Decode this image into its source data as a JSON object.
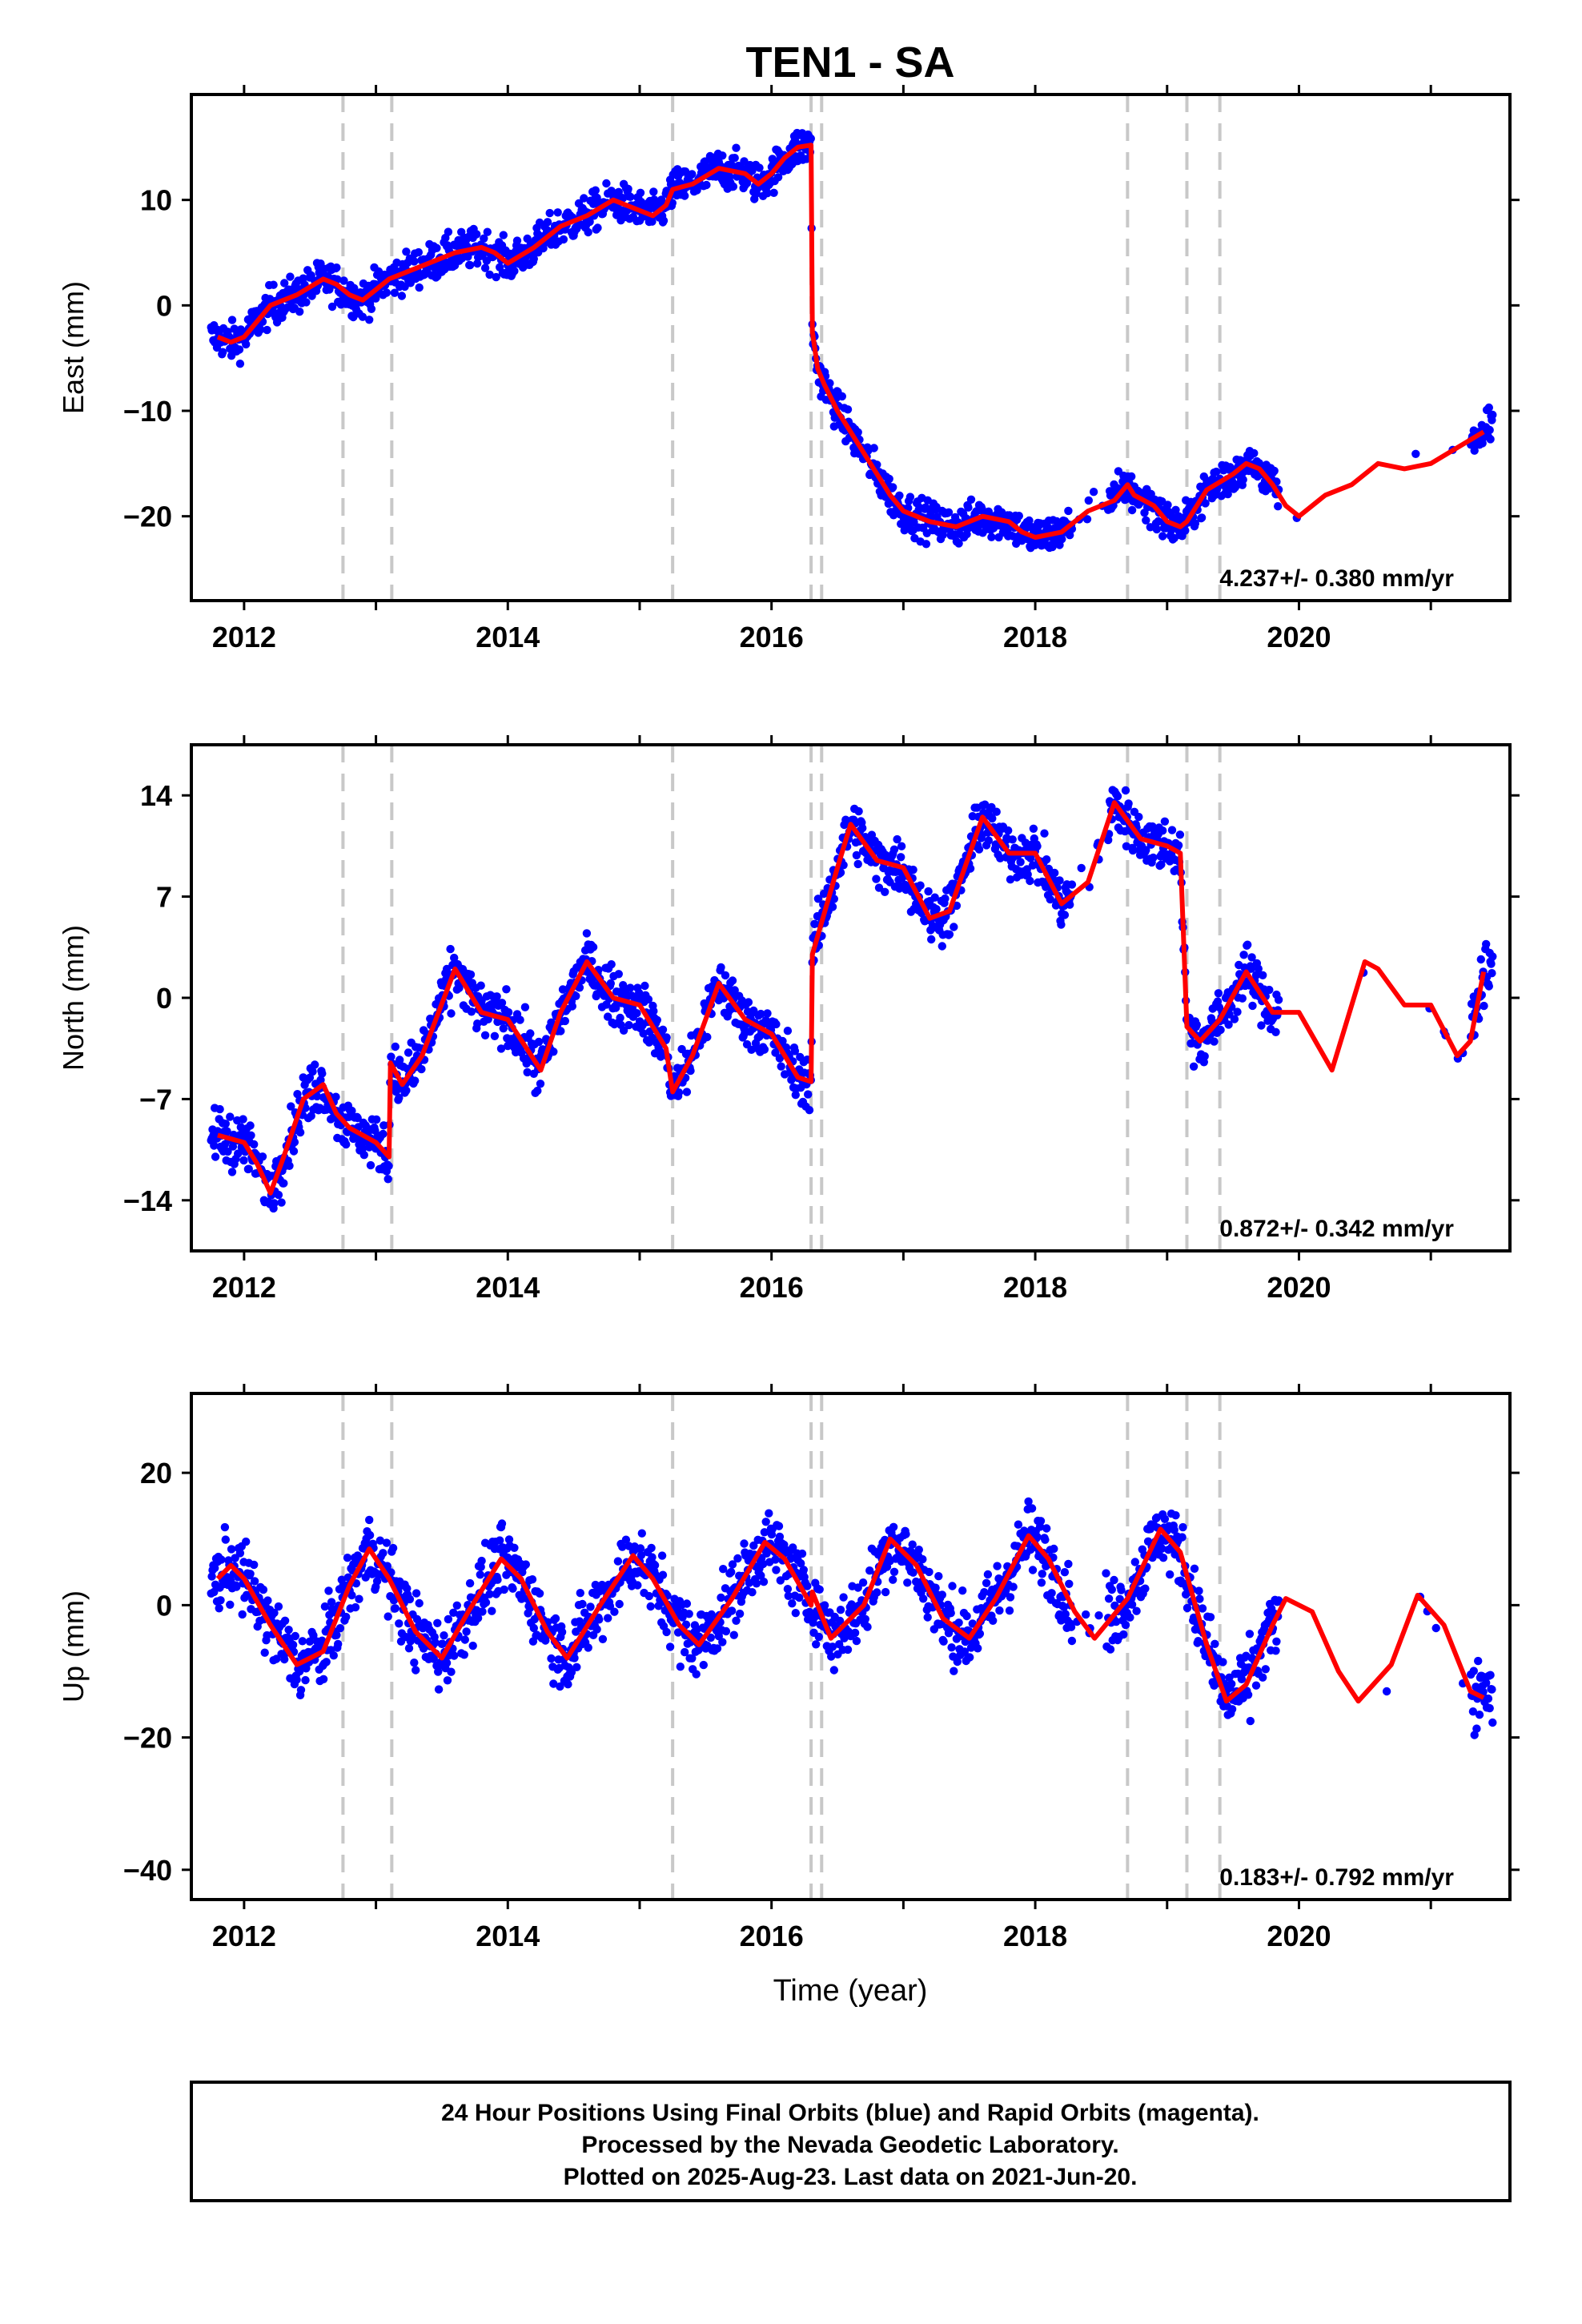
{
  "title": "TEN1 - SA",
  "colors": {
    "final_orbits": "#0000ff",
    "model": "#ff0000",
    "event_lines": "#c8c8c8",
    "frame": "#000000"
  },
  "chart_data": [
    {
      "type": "scatter",
      "name": "east",
      "ylabel": "East (mm)",
      "xlabel": "",
      "xlim": [
        2011.6,
        2021.6
      ],
      "ylim": [
        -28,
        20
      ],
      "yticks": [
        -20,
        -10,
        0,
        10
      ],
      "xticks": [
        2012,
        2014,
        2016,
        2018,
        2020
      ],
      "grid": false,
      "rate_label": "4.237+/- 0.380 mm/yr",
      "model_line": {
        "x": [
          2011.8,
          2011.9,
          2012.0,
          2012.1,
          2012.2,
          2012.4,
          2012.6,
          2012.7,
          2012.8,
          2012.9,
          2013.0,
          2013.1,
          2013.2,
          2013.4,
          2013.6,
          2013.8,
          2013.9,
          2014.0,
          2014.2,
          2014.4,
          2014.6,
          2014.8,
          2014.9,
          2015.1,
          2015.2,
          2015.25,
          2015.4,
          2015.6,
          2015.8,
          2015.9,
          2016.0,
          2016.1,
          2016.2,
          2016.3,
          2016.31,
          2016.35,
          2016.4,
          2016.5,
          2016.7,
          2016.9,
          2017.0,
          2017.2,
          2017.4,
          2017.6,
          2017.8,
          2017.9,
          2018.0,
          2018.2,
          2018.4,
          2018.6,
          2018.7,
          2018.75,
          2018.9,
          2019.0,
          2019.1,
          2019.15,
          2019.3,
          2019.5,
          2019.6,
          2019.7,
          2019.8,
          2019.9,
          2020.0,
          2020.2,
          2020.4,
          2020.6,
          2020.8,
          2021.0,
          2021.2,
          2021.4
        ],
        "y": [
          -3.0,
          -3.5,
          -3.0,
          -1.5,
          0.0,
          1.0,
          2.5,
          2.0,
          1.0,
          0.5,
          1.5,
          2.5,
          3.0,
          4.0,
          5.0,
          5.5,
          5.0,
          4.0,
          5.5,
          7.5,
          8.5,
          10.0,
          9.5,
          8.5,
          9.5,
          11.0,
          11.5,
          13.0,
          12.5,
          11.5,
          12.5,
          14.0,
          15.0,
          15.2,
          -2.5,
          -6.0,
          -7.5,
          -10.0,
          -14.0,
          -18.0,
          -19.5,
          -20.5,
          -21.0,
          -20.0,
          -20.5,
          -21.5,
          -22.0,
          -21.5,
          -19.5,
          -18.5,
          -17.0,
          -18.0,
          -19.0,
          -20.5,
          -21.0,
          -20.5,
          -17.5,
          -16.0,
          -15.0,
          -15.5,
          -17.0,
          -19.0,
          -20.0,
          -18.0,
          -17.0,
          -15.0,
          -15.5,
          -15.0,
          -13.5,
          -12.0
        ]
      },
      "events": [
        2012.75,
        2013.12,
        2015.25,
        2016.3,
        2016.38,
        2018.7,
        2019.15,
        2019.4
      ]
    },
    {
      "type": "scatter",
      "name": "north",
      "ylabel": "North (mm)",
      "xlabel": "",
      "xlim": [
        2011.6,
        2021.6
      ],
      "ylim": [
        -17.5,
        17.5
      ],
      "yticks": [
        -14,
        -7,
        0,
        7,
        14
      ],
      "xticks": [
        2012,
        2014,
        2016,
        2018,
        2020
      ],
      "grid": false,
      "rate_label": "0.872+/- 0.342 mm/yr",
      "model_line": {
        "x": [
          2011.8,
          2012.0,
          2012.1,
          2012.2,
          2012.3,
          2012.45,
          2012.6,
          2012.7,
          2012.8,
          2012.9,
          2013.0,
          2013.1,
          2013.11,
          2013.2,
          2013.35,
          2013.6,
          2013.8,
          2014.0,
          2014.25,
          2014.4,
          2014.6,
          2014.8,
          2015.0,
          2015.2,
          2015.25,
          2015.4,
          2015.6,
          2015.8,
          2016.0,
          2016.2,
          2016.3,
          2016.31,
          2016.5,
          2016.6,
          2016.8,
          2017.0,
          2017.2,
          2017.35,
          2017.6,
          2017.8,
          2018.0,
          2018.2,
          2018.4,
          2018.6,
          2018.8,
          2019.0,
          2019.1,
          2019.15,
          2019.25,
          2019.4,
          2019.6,
          2019.8,
          2020.0,
          2020.25,
          2020.5,
          2020.6,
          2020.8,
          2021.0,
          2021.2,
          2021.3,
          2021.4
        ],
        "y": [
          -9.5,
          -10.0,
          -11.5,
          -13.5,
          -11.0,
          -7.0,
          -6.0,
          -8.0,
          -9.0,
          -9.5,
          -10.0,
          -11.0,
          -4.5,
          -6.0,
          -4.0,
          2.0,
          -1.0,
          -1.5,
          -5.0,
          -1.0,
          2.5,
          0.0,
          -0.5,
          -3.5,
          -6.5,
          -4.0,
          1.0,
          -1.5,
          -2.5,
          -5.5,
          -5.8,
          3.0,
          9.0,
          12.0,
          9.5,
          9.0,
          5.5,
          6.0,
          12.5,
          10.0,
          10.0,
          6.5,
          8.0,
          13.5,
          11.0,
          10.5,
          10.0,
          -2.0,
          -3.0,
          -1.5,
          1.8,
          -1.0,
          -1.0,
          -5.0,
          2.5,
          2.0,
          -0.5,
          -0.5,
          -4.0,
          -3.0,
          1.8
        ]
      },
      "events": [
        2012.75,
        2013.12,
        2015.25,
        2016.3,
        2016.38,
        2018.7,
        2019.15,
        2019.4
      ]
    },
    {
      "type": "scatter",
      "name": "up",
      "ylabel": "Up (mm)",
      "xlabel": "Time (year)",
      "xlim": [
        2011.6,
        2021.6
      ],
      "ylim": [
        -44.5,
        32
      ],
      "yticks": [
        -40,
        -20,
        0,
        20
      ],
      "xticks": [
        2012,
        2014,
        2016,
        2018,
        2020
      ],
      "grid": false,
      "rate_label": "0.183+/- 0.792 mm/yr",
      "model_line": {
        "x": [
          2011.8,
          2011.9,
          2012.0,
          2012.2,
          2012.4,
          2012.6,
          2012.8,
          2012.95,
          2013.1,
          2013.3,
          2013.5,
          2013.7,
          2013.95,
          2014.1,
          2014.3,
          2014.45,
          2014.7,
          2014.95,
          2015.1,
          2015.3,
          2015.45,
          2015.7,
          2015.95,
          2016.1,
          2016.3,
          2016.31,
          2016.45,
          2016.7,
          2016.9,
          2017.1,
          2017.3,
          2017.5,
          2017.7,
          2017.95,
          2018.1,
          2018.3,
          2018.45,
          2018.7,
          2018.95,
          2019.1,
          2019.3,
          2019.45,
          2019.6,
          2019.8,
          2019.9,
          2020.1,
          2020.3,
          2020.45,
          2020.7,
          2020.9,
          2021.1,
          2021.3,
          2021.4
        ],
        "y": [
          4.0,
          6.0,
          4.0,
          -3.0,
          -9.0,
          -7.0,
          3.0,
          8.5,
          4.0,
          -4.0,
          -8.0,
          -1.0,
          7.0,
          4.0,
          -4.0,
          -8.0,
          0.0,
          7.5,
          4.0,
          -3.0,
          -6.0,
          1.0,
          9.5,
          7.0,
          0.0,
          2.0,
          -5.0,
          0.0,
          10.0,
          6.0,
          -2.0,
          -5.0,
          1.0,
          10.5,
          7.0,
          -1.0,
          -5.0,
          1.0,
          11.5,
          8.0,
          -6.0,
          -14.5,
          -12.0,
          -3.0,
          1.0,
          -1.0,
          -10.0,
          -14.5,
          -9.0,
          1.5,
          -3.0,
          -13.0,
          -14.0
        ]
      },
      "events": [
        2012.75,
        2013.12,
        2015.25,
        2016.3,
        2016.38,
        2018.7,
        2019.15,
        2019.4
      ]
    }
  ],
  "caption": {
    "line1": "24 Hour Positions Using Final Orbits (blue) and Rapid Orbits (magenta).",
    "line2": "Processed by the Nevada Geodetic Laboratory.",
    "line3": "Plotted on 2025-Aug-23. Last data on 2021-Jun-20."
  }
}
